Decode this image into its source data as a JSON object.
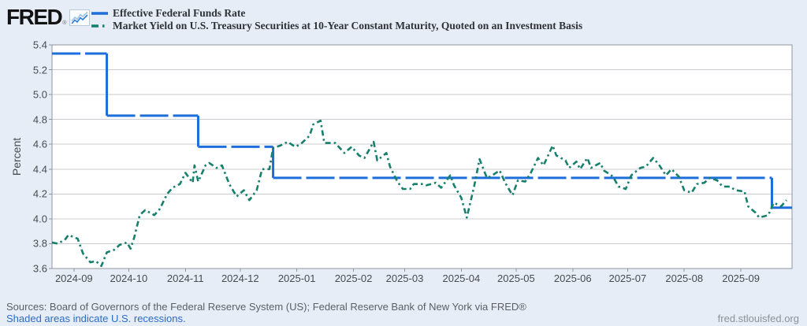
{
  "header": {
    "logo_text": "FRED",
    "logo_registered": "®",
    "legend": [
      {
        "label": "Effective Federal Funds Rate",
        "color": "#1c6fdb",
        "style": "solid"
      },
      {
        "label": "Market Yield on U.S. Treasury Securities at 10-Year Constant Maturity, Quoted on an Investment Basis",
        "color": "#17806d",
        "style": "dash-dot"
      }
    ]
  },
  "footer": {
    "sources": "Sources: Board of Governors of the Federal Reserve System (US); Federal Reserve Bank of New York via FRED®",
    "recessions_link": "Shaded areas indicate U.S. recessions.",
    "site": "fred.stlouisfed.org"
  },
  "chart_data": {
    "type": "line",
    "ylabel": "Percent",
    "ylim": [
      3.6,
      5.4
    ],
    "yticks": [
      3.6,
      3.8,
      4.0,
      4.2,
      4.4,
      4.6,
      4.8,
      5.0,
      5.2,
      5.4
    ],
    "grid": "horizontal",
    "legend_position": "top-left",
    "x_domain": [
      "2024-08-20",
      "2025-09-29"
    ],
    "x_ticks": [
      {
        "date": "2024-09-01",
        "label": "2024-09"
      },
      {
        "date": "2024-10-01",
        "label": "2024-10"
      },
      {
        "date": "2024-11-01",
        "label": "2024-11"
      },
      {
        "date": "2024-12-01",
        "label": "2024-12"
      },
      {
        "date": "2025-01-01",
        "label": "2025-01"
      },
      {
        "date": "2025-02-01",
        "label": "2025-02"
      },
      {
        "date": "2025-03-01",
        "label": "2025-03"
      },
      {
        "date": "2025-04-01",
        "label": "2025-04"
      },
      {
        "date": "2025-05-01",
        "label": "2025-05"
      },
      {
        "date": "2025-06-01",
        "label": "2025-06"
      },
      {
        "date": "2025-07-01",
        "label": "2025-07"
      },
      {
        "date": "2025-08-01",
        "label": "2025-08"
      },
      {
        "date": "2025-09-01",
        "label": "2025-09"
      }
    ],
    "series": [
      {
        "name": "Effective Federal Funds Rate",
        "color": "#1c6fdb",
        "line_style": "long-dash step",
        "segments": [
          {
            "from": "2024-08-20",
            "to": "2024-09-18",
            "value": 5.33
          },
          {
            "from": "2024-09-19",
            "to": "2024-11-07",
            "value": 4.83
          },
          {
            "from": "2024-11-08",
            "to": "2024-12-18",
            "value": 4.58
          },
          {
            "from": "2024-12-19",
            "to": "2025-09-17",
            "value": 4.33
          },
          {
            "from": "2025-09-18",
            "to": "2025-09-29",
            "value": 4.09
          }
        ]
      },
      {
        "name": "Market Yield on U.S. Treasury Securities at 10-Year Constant Maturity, Quoted on an Investment Basis",
        "color": "#17806d",
        "line_style": "dash-dot",
        "dates": [
          "2024-08-20",
          "2024-08-23",
          "2024-08-27",
          "2024-08-29",
          "2024-09-03",
          "2024-09-06",
          "2024-09-10",
          "2024-09-13",
          "2024-09-16",
          "2024-09-19",
          "2024-09-23",
          "2024-09-26",
          "2024-09-30",
          "2024-10-02",
          "2024-10-04",
          "2024-10-07",
          "2024-10-10",
          "2024-10-15",
          "2024-10-18",
          "2024-10-22",
          "2024-10-25",
          "2024-10-29",
          "2024-11-01",
          "2024-11-05",
          "2024-11-06",
          "2024-11-08",
          "2024-11-12",
          "2024-11-14",
          "2024-11-18",
          "2024-11-21",
          "2024-11-25",
          "2024-11-29",
          "2024-12-03",
          "2024-12-06",
          "2024-12-10",
          "2024-12-13",
          "2024-12-17",
          "2024-12-19",
          "2024-12-23",
          "2024-12-27",
          "2024-12-31",
          "2025-01-03",
          "2025-01-08",
          "2025-01-10",
          "2025-01-14",
          "2025-01-16",
          "2025-01-22",
          "2025-01-27",
          "2025-01-31",
          "2025-02-04",
          "2025-02-07",
          "2025-02-12",
          "2025-02-14",
          "2025-02-19",
          "2025-02-21",
          "2025-02-25",
          "2025-02-28",
          "2025-03-04",
          "2025-03-06",
          "2025-03-11",
          "2025-03-13",
          "2025-03-18",
          "2025-03-21",
          "2025-03-26",
          "2025-03-28",
          "2025-04-01",
          "2025-04-04",
          "2025-04-08",
          "2025-04-11",
          "2025-04-15",
          "2025-04-17",
          "2025-04-22",
          "2025-04-25",
          "2025-04-29",
          "2025-05-02",
          "2025-05-06",
          "2025-05-09",
          "2025-05-13",
          "2025-05-16",
          "2025-05-21",
          "2025-05-23",
          "2025-05-28",
          "2025-05-30",
          "2025-06-03",
          "2025-06-05",
          "2025-06-09",
          "2025-06-11",
          "2025-06-16",
          "2025-06-18",
          "2025-06-23",
          "2025-06-26",
          "2025-06-30",
          "2025-07-03",
          "2025-07-08",
          "2025-07-11",
          "2025-07-15",
          "2025-07-18",
          "2025-07-22",
          "2025-07-25",
          "2025-07-29",
          "2025-08-01",
          "2025-08-05",
          "2025-08-08",
          "2025-08-12",
          "2025-08-15",
          "2025-08-19",
          "2025-08-22",
          "2025-08-26",
          "2025-08-29",
          "2025-09-03",
          "2025-09-05",
          "2025-09-09",
          "2025-09-11",
          "2025-09-16",
          "2025-09-19",
          "2025-09-23",
          "2025-09-26"
        ],
        "values": [
          3.81,
          3.8,
          3.83,
          3.87,
          3.84,
          3.72,
          3.65,
          3.66,
          3.62,
          3.73,
          3.75,
          3.79,
          3.81,
          3.76,
          3.85,
          4.03,
          4.07,
          4.03,
          4.08,
          4.2,
          4.25,
          4.28,
          4.37,
          4.29,
          4.43,
          4.3,
          4.43,
          4.45,
          4.41,
          4.43,
          4.28,
          4.18,
          4.23,
          4.15,
          4.23,
          4.4,
          4.4,
          4.57,
          4.59,
          4.62,
          4.58,
          4.6,
          4.67,
          4.76,
          4.79,
          4.61,
          4.61,
          4.53,
          4.58,
          4.51,
          4.49,
          4.62,
          4.47,
          4.53,
          4.42,
          4.3,
          4.24,
          4.24,
          4.28,
          4.28,
          4.27,
          4.29,
          4.25,
          4.35,
          4.27,
          4.17,
          4.01,
          4.26,
          4.48,
          4.33,
          4.34,
          4.39,
          4.29,
          4.19,
          4.31,
          4.3,
          4.37,
          4.49,
          4.43,
          4.59,
          4.51,
          4.47,
          4.41,
          4.46,
          4.4,
          4.49,
          4.41,
          4.45,
          4.39,
          4.34,
          4.26,
          4.24,
          4.35,
          4.41,
          4.42,
          4.49,
          4.44,
          4.35,
          4.4,
          4.34,
          4.23,
          4.21,
          4.28,
          4.29,
          4.33,
          4.31,
          4.26,
          4.26,
          4.23,
          4.22,
          4.1,
          4.05,
          4.01,
          4.03,
          4.13,
          4.1,
          4.15
        ]
      }
    ]
  }
}
